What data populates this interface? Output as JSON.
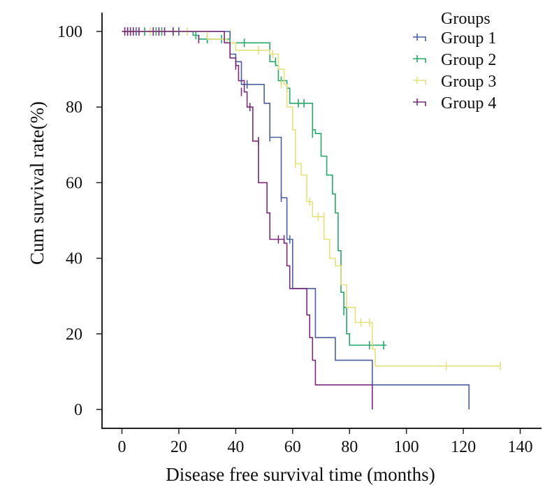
{
  "chart_data": {
    "type": "line",
    "subtype": "kaplan-meier step",
    "xlabel": "Disease free survival time (months)",
    "ylabel": "Cum survival rate(%)",
    "xlim": [
      -7,
      147
    ],
    "ylim": [
      -5,
      105
    ],
    "xticks": [
      0,
      20,
      40,
      60,
      80,
      100,
      120,
      140
    ],
    "yticks": [
      0,
      20,
      40,
      60,
      80,
      100
    ],
    "grid": false,
    "legend": {
      "title": "Groups",
      "position": "top-right"
    },
    "series": [
      {
        "name": "Group 1",
        "color": "#4a5fa0",
        "steps": [
          [
            0,
            100
          ],
          [
            38,
            100
          ],
          [
            38,
            94
          ],
          [
            40,
            92
          ],
          [
            42,
            86
          ],
          [
            48,
            86
          ],
          [
            50,
            81
          ],
          [
            52,
            72
          ],
          [
            55,
            72
          ],
          [
            56,
            56
          ],
          [
            58,
            45
          ],
          [
            60,
            32
          ],
          [
            65,
            32
          ],
          [
            68,
            19
          ],
          [
            75,
            19
          ],
          [
            75,
            13
          ],
          [
            88,
            13
          ],
          [
            88,
            6.5
          ],
          [
            122,
            6.5
          ],
          [
            122,
            0
          ]
        ],
        "censored": [
          [
            2,
            100
          ],
          [
            5,
            100
          ],
          [
            10,
            100
          ],
          [
            20,
            100
          ],
          [
            30,
            98
          ],
          [
            44,
            86
          ],
          [
            52,
            72
          ],
          [
            56,
            56
          ],
          [
            59,
            45
          ]
        ]
      },
      {
        "name": "Group 2",
        "color": "#26a86a",
        "steps": [
          [
            0,
            100
          ],
          [
            25,
            100
          ],
          [
            25,
            99
          ],
          [
            27,
            98
          ],
          [
            38,
            98
          ],
          [
            38,
            97
          ],
          [
            40,
            97
          ],
          [
            52,
            97
          ],
          [
            52,
            92
          ],
          [
            54,
            91
          ],
          [
            55,
            87
          ],
          [
            57,
            87
          ],
          [
            58,
            85
          ],
          [
            59,
            81
          ],
          [
            67,
            81
          ],
          [
            67,
            74
          ],
          [
            68,
            73
          ],
          [
            70,
            67
          ],
          [
            72,
            62
          ],
          [
            74,
            57
          ],
          [
            75,
            52
          ],
          [
            76,
            42
          ],
          [
            77,
            31
          ],
          [
            78,
            27
          ],
          [
            79,
            20
          ],
          [
            80,
            17
          ],
          [
            93,
            17
          ]
        ],
        "censored": [
          [
            8,
            100
          ],
          [
            12,
            100
          ],
          [
            14,
            100
          ],
          [
            26,
            99
          ],
          [
            30,
            98
          ],
          [
            35,
            98
          ],
          [
            43,
            97
          ],
          [
            54,
            92
          ],
          [
            56,
            87
          ],
          [
            58,
            85
          ],
          [
            62,
            81
          ],
          [
            64,
            81
          ],
          [
            67,
            73
          ],
          [
            78,
            26
          ],
          [
            87,
            17
          ],
          [
            88,
            17
          ],
          [
            92,
            17
          ]
        ]
      },
      {
        "name": "Group 3",
        "color": "#e6e27a",
        "steps": [
          [
            0,
            100
          ],
          [
            30,
            100
          ],
          [
            30,
            98
          ],
          [
            37,
            97
          ],
          [
            40,
            95
          ],
          [
            48,
            95
          ],
          [
            52,
            94
          ],
          [
            55,
            90
          ],
          [
            57,
            86
          ],
          [
            58,
            80
          ],
          [
            60,
            74
          ],
          [
            61,
            65
          ],
          [
            63,
            62
          ],
          [
            65,
            55
          ],
          [
            67,
            51
          ],
          [
            70,
            51
          ],
          [
            71,
            45
          ],
          [
            73,
            40
          ],
          [
            75,
            38
          ],
          [
            77,
            33
          ],
          [
            79,
            27
          ],
          [
            82,
            23
          ],
          [
            87,
            23
          ],
          [
            88,
            16
          ],
          [
            89,
            11.5
          ],
          [
            133,
            11.5
          ]
        ],
        "censored": [
          [
            10,
            100
          ],
          [
            18,
            100
          ],
          [
            23,
            100
          ],
          [
            48,
            95
          ],
          [
            53,
            94
          ],
          [
            56,
            86
          ],
          [
            61,
            65
          ],
          [
            66,
            55
          ],
          [
            69,
            51
          ],
          [
            71,
            51
          ],
          [
            84,
            23
          ],
          [
            87,
            23
          ],
          [
            114,
            11.5
          ],
          [
            133,
            11.5
          ]
        ]
      },
      {
        "name": "Group 4",
        "color": "#7a2a7a",
        "steps": [
          [
            0,
            100
          ],
          [
            36,
            100
          ],
          [
            36,
            97
          ],
          [
            38,
            93
          ],
          [
            40,
            91
          ],
          [
            41,
            87
          ],
          [
            43,
            84
          ],
          [
            44,
            80
          ],
          [
            46,
            71
          ],
          [
            48,
            71
          ],
          [
            48,
            60
          ],
          [
            50,
            60
          ],
          [
            51,
            52
          ],
          [
            52,
            45
          ],
          [
            54,
            45
          ],
          [
            57,
            44
          ],
          [
            58,
            38
          ],
          [
            59,
            32
          ],
          [
            64,
            32
          ],
          [
            65,
            25
          ],
          [
            66,
            19
          ],
          [
            67,
            13
          ],
          [
            68,
            6.5
          ],
          [
            88,
            6.5
          ],
          [
            88,
            0
          ]
        ],
        "censored": [
          [
            1,
            100
          ],
          [
            2,
            100
          ],
          [
            3,
            100
          ],
          [
            4,
            100
          ],
          [
            6,
            100
          ],
          [
            11,
            100
          ],
          [
            13,
            100
          ],
          [
            15,
            100
          ],
          [
            18,
            100
          ],
          [
            27,
            98
          ],
          [
            40,
            91
          ],
          [
            42,
            84
          ],
          [
            45,
            80
          ],
          [
            48,
            71
          ],
          [
            55,
            45
          ],
          [
            57,
            45
          ]
        ]
      }
    ]
  }
}
